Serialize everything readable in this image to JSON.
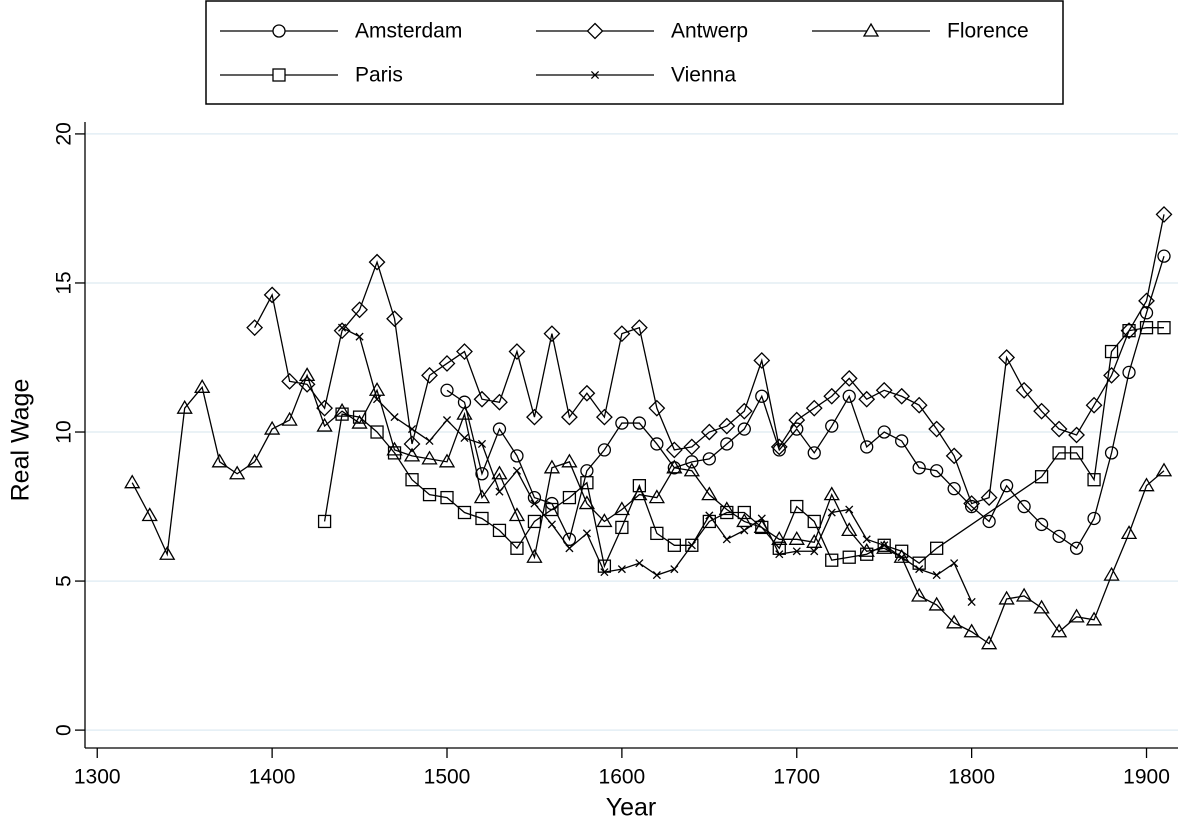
{
  "chart_data": {
    "type": "line",
    "x_label": "Year",
    "y_label": "Real Wage",
    "xlim": [
      1293,
      1918
    ],
    "ylim": [
      -0.6,
      20.4
    ],
    "xticks": [
      1300,
      1400,
      1500,
      1600,
      1700,
      1800,
      1900
    ],
    "yticks": [
      0,
      5,
      10,
      15,
      20
    ],
    "grid": true,
    "legend": "top",
    "series": [
      {
        "name": "Amsterdam",
        "color": "#000000",
        "marker": "circle",
        "x": [
          1500,
          1510,
          1520,
          1530,
          1540,
          1550,
          1560,
          1570,
          1580,
          1590,
          1600,
          1610,
          1620,
          1630,
          1640,
          1650,
          1660,
          1670,
          1680,
          1690,
          1700,
          1710,
          1720,
          1730,
          1740,
          1750,
          1760,
          1770,
          1780,
          1790,
          1800,
          1810,
          1820,
          1830,
          1840,
          1850,
          1860,
          1870,
          1880,
          1890,
          1900,
          1910
        ],
        "values": [
          11.4,
          11.0,
          8.6,
          10.1,
          9.2,
          7.8,
          7.6,
          6.4,
          8.7,
          9.4,
          10.3,
          10.3,
          9.6,
          8.8,
          9.0,
          9.1,
          9.6,
          10.1,
          11.2,
          9.4,
          10.1,
          9.3,
          10.2,
          11.2,
          9.5,
          10.0,
          9.7,
          8.8,
          8.7,
          8.1,
          7.5,
          7.0,
          8.2,
          7.5,
          6.9,
          6.5,
          6.1,
          7.1,
          9.3,
          12.0,
          14.0,
          15.9
        ]
      },
      {
        "name": "Antwerp",
        "color": "#000000",
        "marker": "diamond",
        "x": [
          1390,
          1400,
          1410,
          1420,
          1430,
          1440,
          1450,
          1460,
          1470,
          1480,
          1490,
          1500,
          1510,
          1520,
          1530,
          1540,
          1550,
          1560,
          1570,
          1580,
          1590,
          1600,
          1610,
          1620,
          1630,
          1640,
          1650,
          1660,
          1670,
          1680,
          1690,
          1700,
          1710,
          1720,
          1730,
          1740,
          1750,
          1760,
          1770,
          1780,
          1790,
          1800,
          1810,
          1820,
          1830,
          1840,
          1850,
          1860,
          1870,
          1880,
          1890,
          1900,
          1910
        ],
        "values": [
          13.5,
          14.6,
          11.7,
          11.6,
          10.8,
          13.4,
          14.1,
          15.7,
          13.8,
          9.6,
          11.9,
          12.3,
          12.7,
          11.1,
          11.0,
          12.7,
          10.5,
          13.3,
          10.5,
          11.3,
          10.5,
          13.3,
          13.5,
          10.8,
          9.4,
          9.5,
          10.0,
          10.2,
          10.7,
          12.4,
          9.5,
          10.4,
          10.8,
          11.2,
          11.8,
          11.1,
          11.4,
          11.2,
          10.9,
          10.1,
          9.2,
          7.6,
          7.8,
          12.5,
          11.4,
          10.7,
          10.1,
          9.9,
          10.9,
          11.9,
          13.4,
          14.4,
          17.3
        ]
      },
      {
        "name": "Florence",
        "color": "#000000",
        "marker": "triangle",
        "x": [
          1320,
          1330,
          1340,
          1350,
          1360,
          1370,
          1380,
          1390,
          1400,
          1410,
          1420,
          1430,
          1440,
          1450,
          1460,
          1470,
          1480,
          1490,
          1500,
          1510,
          1520,
          1530,
          1540,
          1550,
          1560,
          1570,
          1580,
          1590,
          1600,
          1610,
          1620,
          1630,
          1640,
          1650,
          1660,
          1670,
          1680,
          1690,
          1700,
          1710,
          1720,
          1730,
          1740,
          1750,
          1760,
          1770,
          1780,
          1790,
          1800,
          1810,
          1820,
          1830,
          1840,
          1850,
          1860,
          1870,
          1880,
          1890,
          1900,
          1910
        ],
        "values": [
          8.3,
          7.2,
          5.9,
          10.8,
          11.5,
          9.0,
          8.6,
          9.0,
          10.1,
          10.4,
          11.9,
          10.2,
          10.7,
          10.3,
          11.4,
          9.4,
          9.2,
          9.1,
          9.0,
          10.6,
          7.8,
          8.6,
          7.2,
          5.8,
          8.8,
          9.0,
          7.6,
          7.0,
          7.4,
          7.9,
          7.8,
          8.8,
          8.7,
          7.9,
          7.4,
          7.0,
          6.8,
          6.4,
          6.4,
          6.3,
          7.9,
          6.7,
          6.0,
          6.1,
          5.8,
          4.5,
          4.2,
          3.6,
          3.3,
          2.9,
          4.4,
          4.5,
          4.1,
          3.3,
          3.8,
          3.7,
          5.2,
          6.6,
          8.2,
          8.7
        ]
      },
      {
        "name": "Paris",
        "color": "#000000",
        "marker": "square",
        "x": [
          1430,
          1440,
          1450,
          1460,
          1470,
          1480,
          1490,
          1500,
          1510,
          1520,
          1530,
          1540,
          1550,
          1560,
          1570,
          1580,
          1590,
          1600,
          1610,
          1620,
          1630,
          1640,
          1650,
          1660,
          1670,
          1680,
          1690,
          1700,
          1710,
          1720,
          1730,
          1740,
          1750,
          1760,
          1770,
          1780,
          1840,
          1850,
          1860,
          1870,
          1880,
          1890,
          1900,
          1910
        ],
        "values": [
          7.0,
          10.6,
          10.5,
          10.0,
          9.3,
          8.4,
          7.9,
          7.8,
          7.3,
          7.1,
          6.7,
          6.1,
          7.0,
          7.4,
          7.8,
          8.3,
          5.5,
          6.8,
          8.2,
          6.6,
          6.2,
          6.2,
          7.0,
          7.3,
          7.3,
          6.8,
          6.1,
          7.5,
          7.0,
          5.7,
          5.8,
          5.9,
          6.2,
          6.0,
          5.6,
          6.1,
          8.5,
          9.3,
          9.3,
          8.4,
          12.7,
          13.4,
          13.5,
          13.5
        ]
      },
      {
        "name": "Vienna",
        "color": "#000000",
        "marker": "x",
        "x": [
          1440,
          1450,
          1460,
          1470,
          1480,
          1490,
          1500,
          1510,
          1520,
          1530,
          1540,
          1550,
          1560,
          1570,
          1580,
          1590,
          1600,
          1610,
          1620,
          1630,
          1640,
          1650,
          1660,
          1670,
          1680,
          1690,
          1700,
          1710,
          1720,
          1730,
          1740,
          1750,
          1760,
          1770,
          1780,
          1790,
          1800
        ],
        "values": [
          13.5,
          13.2,
          11.1,
          10.5,
          10.1,
          9.7,
          10.4,
          9.8,
          9.6,
          8.0,
          8.7,
          7.6,
          6.9,
          6.1,
          6.6,
          5.3,
          5.4,
          5.6,
          5.2,
          5.4,
          6.2,
          7.2,
          6.4,
          6.7,
          7.1,
          5.9,
          6.0,
          6.0,
          7.3,
          7.4,
          6.4,
          6.2,
          5.8,
          5.4,
          5.2,
          5.6,
          4.3
        ]
      }
    ]
  }
}
